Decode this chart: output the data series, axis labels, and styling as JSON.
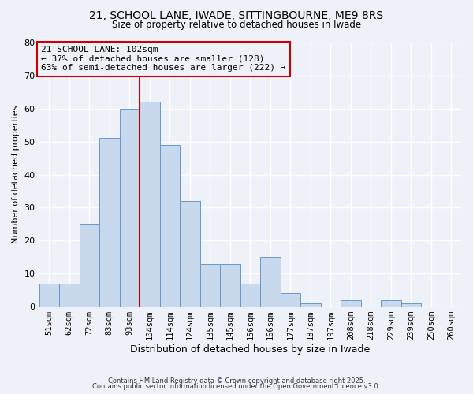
{
  "title1": "21, SCHOOL LANE, IWADE, SITTINGBOURNE, ME9 8RS",
  "title2": "Size of property relative to detached houses in Iwade",
  "xlabel": "Distribution of detached houses by size in Iwade",
  "ylabel": "Number of detached properties",
  "bin_labels": [
    "51sqm",
    "62sqm",
    "72sqm",
    "83sqm",
    "93sqm",
    "104sqm",
    "114sqm",
    "124sqm",
    "135sqm",
    "145sqm",
    "156sqm",
    "166sqm",
    "177sqm",
    "187sqm",
    "197sqm",
    "208sqm",
    "218sqm",
    "229sqm",
    "239sqm",
    "250sqm",
    "260sqm"
  ],
  "bar_values": [
    7,
    7,
    25,
    51,
    60,
    62,
    49,
    32,
    13,
    13,
    7,
    15,
    4,
    1,
    0,
    2,
    0,
    2,
    1,
    0,
    0
  ],
  "bar_color": "#c8d8ed",
  "bar_edge_color": "#6699cc",
  "vline_color": "#cc0000",
  "annotation_title": "21 SCHOOL LANE: 102sqm",
  "annotation_line1": "← 37% of detached houses are smaller (128)",
  "annotation_line2": "63% of semi-detached houses are larger (222) →",
  "annotation_box_color": "#cc0000",
  "ylim": [
    0,
    80
  ],
  "yticks": [
    0,
    10,
    20,
    30,
    40,
    50,
    60,
    70,
    80
  ],
  "footer1": "Contains HM Land Registry data © Crown copyright and database right 2025.",
  "footer2": "Contains public sector information licensed under the Open Government Licence v3.0.",
  "bg_color": "#eef2f8"
}
